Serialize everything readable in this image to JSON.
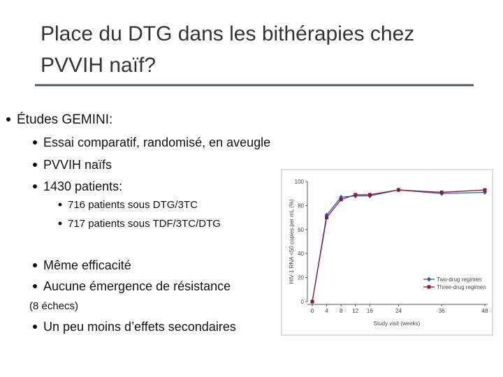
{
  "title_lines": [
    "Place du DTG dans les bithérapies chez",
    "PVVIH naïf?"
  ],
  "items": [
    "Études GEMINI:",
    "Essai comparatif, randomisé, en aveugle",
    "PVVIH naïfs",
    "1430 patients:",
    "716 patients sous DTG/3TC",
    "717 patients sous TDF/3TC/DTG",
    "Même efficacité",
    "Aucune émergence de résistance",
    "(8 échecs)",
    "Un peu moins d’effets secondaires"
  ],
  "chart_data": {
    "type": "line",
    "x": [
      0,
      4,
      8,
      12,
      16,
      24,
      36,
      48
    ],
    "series": [
      {
        "name": "Two-drug regimen",
        "color": "#2a5ca8",
        "values": [
          0,
          72,
          87,
          88,
          88,
          93,
          90,
          91
        ]
      },
      {
        "name": "Three-drug regimen",
        "color": "#8b1a3a",
        "values": [
          0,
          70,
          85,
          89,
          89,
          93,
          91,
          93
        ]
      }
    ],
    "xlim": [
      0,
      48
    ],
    "xticks": [
      0,
      4,
      8,
      12,
      16,
      24,
      36,
      48
    ],
    "ylim": [
      0,
      100
    ],
    "yticks": [
      0,
      20,
      40,
      60,
      80,
      100
    ],
    "xlabel": "Study visit (weeks)",
    "ylabel": "HIV-1 RNA <50 copies per mL (%)",
    "legend": "lower right"
  }
}
